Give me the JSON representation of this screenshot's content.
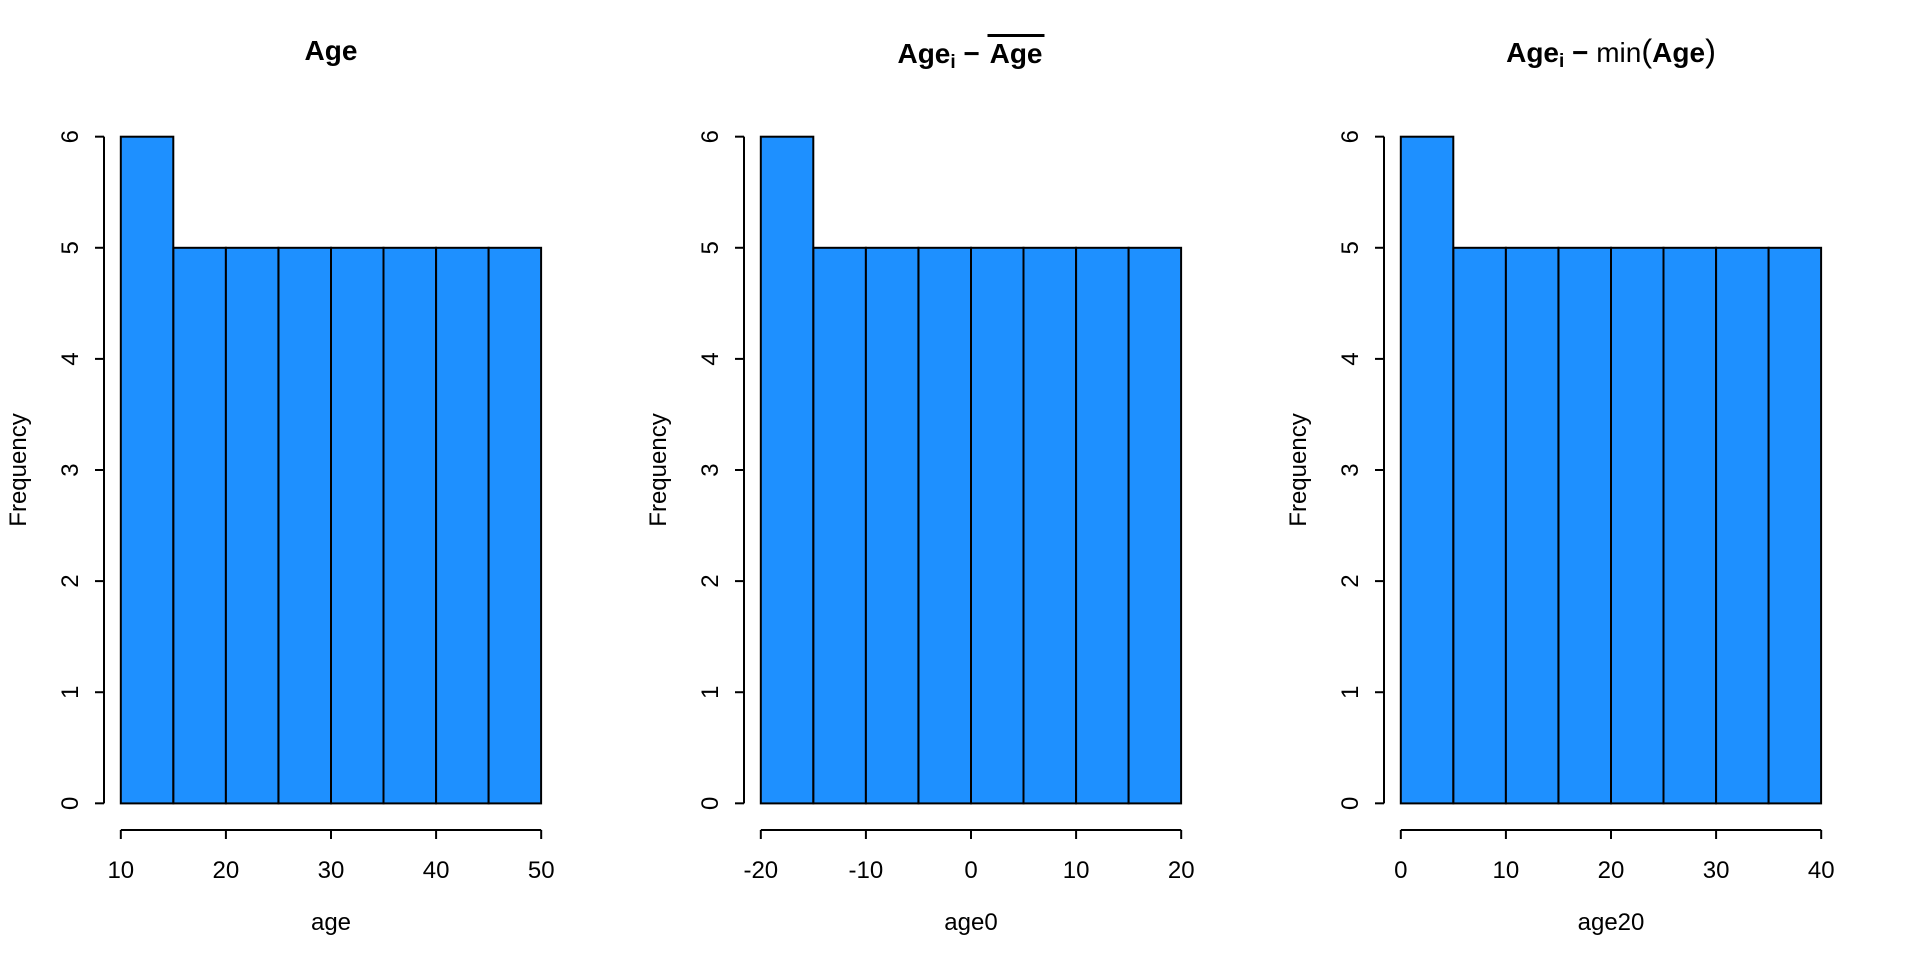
{
  "figure": {
    "background": "#ffffff",
    "text_color": "#000000"
  },
  "chart_data": [
    {
      "type": "bar",
      "subtype": "histogram",
      "title_parts": [
        {
          "text": "Age",
          "style": "bold"
        }
      ],
      "xlabel": "age",
      "ylabel": "Frequency",
      "bin_edges": [
        10,
        15,
        20,
        25,
        30,
        35,
        40,
        45,
        50
      ],
      "counts": [
        6,
        5,
        5,
        5,
        5,
        5,
        5,
        5
      ],
      "x_ticks": [
        10,
        20,
        30,
        40,
        50
      ],
      "y_ticks": [
        0,
        1,
        2,
        3,
        4,
        5,
        6
      ],
      "xlim": [
        10,
        50
      ],
      "ylim": [
        0,
        6
      ],
      "grid": false,
      "legend": "none",
      "bar_color": "#1E90FF",
      "bar_border": "#000000",
      "axis_color": "#000000"
    },
    {
      "type": "bar",
      "subtype": "histogram",
      "title_parts": [
        {
          "text": "Age",
          "style": "bold"
        },
        {
          "text": "i",
          "style": "bold-subscript"
        },
        {
          "text": " − ",
          "style": "bold"
        },
        {
          "text": "Age",
          "style": "bold-overline"
        }
      ],
      "xlabel": "age0",
      "ylabel": "Frequency",
      "bin_edges": [
        -20,
        -15,
        -10,
        -5,
        0,
        5,
        10,
        15,
        20
      ],
      "counts": [
        6,
        5,
        5,
        5,
        5,
        5,
        5,
        5
      ],
      "x_ticks": [
        -20,
        -10,
        0,
        10,
        20
      ],
      "y_ticks": [
        0,
        1,
        2,
        3,
        4,
        5,
        6
      ],
      "xlim": [
        -20,
        20
      ],
      "ylim": [
        0,
        6
      ],
      "grid": false,
      "legend": "none",
      "bar_color": "#1E90FF",
      "bar_border": "#000000",
      "axis_color": "#000000"
    },
    {
      "type": "bar",
      "subtype": "histogram",
      "title_parts": [
        {
          "text": "Age",
          "style": "bold"
        },
        {
          "text": "i",
          "style": "bold-subscript"
        },
        {
          "text": " − ",
          "style": "bold"
        },
        {
          "text": "min",
          "style": "plain"
        },
        {
          "text": "(",
          "style": "paren"
        },
        {
          "text": "Age",
          "style": "bold"
        },
        {
          "text": ")",
          "style": "paren"
        }
      ],
      "xlabel": "age20",
      "ylabel": "Frequency",
      "bin_edges": [
        0,
        5,
        10,
        15,
        20,
        25,
        30,
        35,
        40
      ],
      "counts": [
        6,
        5,
        5,
        5,
        5,
        5,
        5,
        5
      ],
      "x_ticks": [
        0,
        10,
        20,
        30,
        40
      ],
      "y_ticks": [
        0,
        1,
        2,
        3,
        4,
        5,
        6
      ],
      "xlim": [
        0,
        40
      ],
      "ylim": [
        0,
        6
      ],
      "grid": false,
      "legend": "none",
      "bar_color": "#1E90FF",
      "bar_border": "#000000",
      "axis_color": "#000000"
    }
  ]
}
